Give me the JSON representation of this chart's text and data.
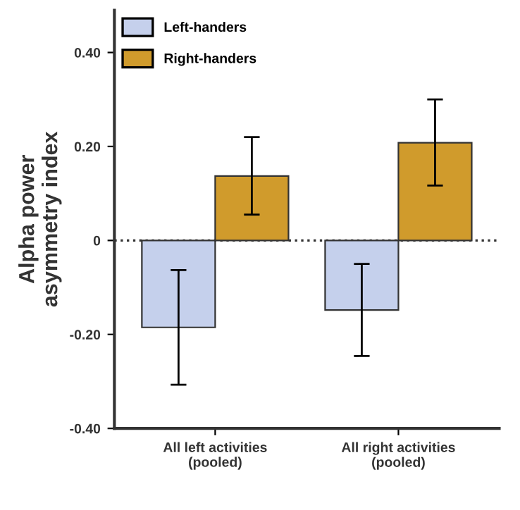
{
  "chart_data": {
    "type": "bar",
    "ylabel": "Alpha power\nasymmetry index",
    "categories": [
      "All left activities\n(pooled)",
      "All right activities\n(pooled)"
    ],
    "series": [
      {
        "name": "Left-handers",
        "color": "#c5d0ec",
        "values": [
          -0.185,
          -0.148
        ],
        "errors": [
          [
            -0.307,
            -0.063
          ],
          [
            -0.246,
            -0.05
          ]
        ]
      },
      {
        "name": "Right-handers",
        "color": "#d09b2c",
        "values": [
          0.137,
          0.208
        ],
        "errors": [
          [
            0.055,
            0.22
          ],
          [
            0.117,
            0.3
          ]
        ]
      }
    ],
    "ylim": [
      -0.4,
      0.49
    ],
    "yticks": [
      {
        "value": -0.4,
        "label": "-0.40"
      },
      {
        "value": -0.2,
        "label": "-0.20"
      },
      0,
      {
        "value": 0.2,
        "label": "0.20"
      },
      {
        "value": 0.4,
        "label": "0.40"
      }
    ],
    "ref_lines": [
      {
        "axis": "y",
        "value": 0,
        "line_style": "dotted",
        "color": "#333333"
      }
    ],
    "grid": false,
    "legend": "top left"
  }
}
